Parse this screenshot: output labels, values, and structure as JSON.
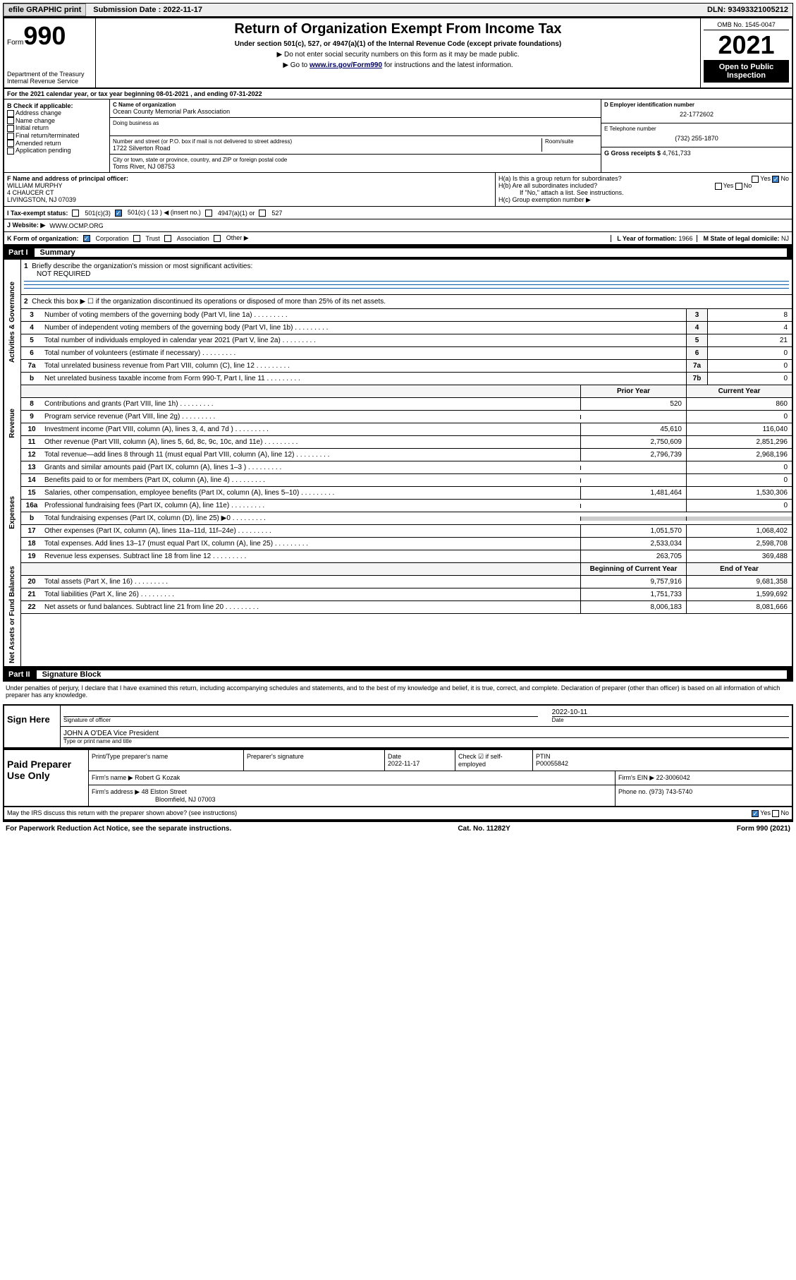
{
  "topbar": {
    "efile": "efile GRAPHIC print",
    "submission_label": "Submission Date : 2022-11-17",
    "dln": "DLN: 93493321005212"
  },
  "header": {
    "form_label": "Form",
    "form_number": "990",
    "title": "Return of Organization Exempt From Income Tax",
    "subtitle": "Under section 501(c), 527, or 4947(a)(1) of the Internal Revenue Code (except private foundations)",
    "note1": "▶ Do not enter social security numbers on this form as it may be made public.",
    "note2_prefix": "▶ Go to ",
    "note2_link": "www.irs.gov/Form990",
    "note2_suffix": " for instructions and the latest information.",
    "dept": "Department of the Treasury Internal Revenue Service",
    "omb": "OMB No. 1545-0047",
    "year": "2021",
    "open": "Open to Public Inspection"
  },
  "line_a": "For the 2021 calendar year, or tax year beginning 08-01-2021   , and ending 07-31-2022",
  "section_b": {
    "label": "B Check if applicable:",
    "opts": [
      "Address change",
      "Name change",
      "Initial return",
      "Final return/terminated",
      "Amended return",
      "Application pending"
    ]
  },
  "section_c": {
    "name_label": "C Name of organization",
    "name": "Ocean County Memorial Park Association",
    "dba_label": "Doing business as",
    "addr_label": "Number and street (or P.O. box if mail is not delivered to street address)",
    "room_label": "Room/suite",
    "addr": "1722 Silverton Road",
    "city_label": "City or town, state or province, country, and ZIP or foreign postal code",
    "city": "Toms River, NJ  08753"
  },
  "section_d": {
    "label": "D Employer identification number",
    "value": "22-1772602"
  },
  "section_e": {
    "label": "E Telephone number",
    "value": "(732) 255-1870"
  },
  "section_g": {
    "label": "G Gross receipts $",
    "value": "4,761,733"
  },
  "section_f": {
    "label": "F  Name and address of principal officer:",
    "name": "WILLIAM MURPHY",
    "addr1": "4 CHAUCER CT",
    "addr2": "LIVINGSTON, NJ  07039"
  },
  "section_h": {
    "ha": "H(a)  Is this a group return for subordinates?",
    "hb": "H(b)  Are all subordinates included?",
    "hb_note": "If \"No,\" attach a list. See instructions.",
    "hc": "H(c)  Group exemption number ▶",
    "yes": "Yes",
    "no": "No"
  },
  "section_i": {
    "label": "I    Tax-exempt status:",
    "c3": "501(c)(3)",
    "c": "501(c) ( 13 ) ◀ (insert no.)",
    "a1": "4947(a)(1) or",
    "527": "527"
  },
  "section_j": {
    "label": "J   Website: ▶",
    "value": "WWW.OCMP.ORG"
  },
  "section_k": {
    "label": "K Form of organization:",
    "corp": "Corporation",
    "trust": "Trust",
    "assoc": "Association",
    "other": "Other ▶"
  },
  "section_l": {
    "label": "L Year of formation:",
    "value": "1966"
  },
  "section_m": {
    "label": "M State of legal domicile:",
    "value": "NJ"
  },
  "part1": {
    "label": "Part I",
    "title": "Summary"
  },
  "q1": {
    "num": "1",
    "label": "Briefly describe the organization's mission or most significant activities:",
    "value": "NOT REQUIRED"
  },
  "q2": {
    "num": "2",
    "label": "Check this box ▶ ☐  if the organization discontinued its operations or disposed of more than 25% of its net assets."
  },
  "lines_gov": [
    {
      "num": "3",
      "desc": "Number of voting members of the governing body (Part VI, line 1a)",
      "col": "3",
      "val": "8"
    },
    {
      "num": "4",
      "desc": "Number of independent voting members of the governing body (Part VI, line 1b)",
      "col": "4",
      "val": "4"
    },
    {
      "num": "5",
      "desc": "Total number of individuals employed in calendar year 2021 (Part V, line 2a)",
      "col": "5",
      "val": "21"
    },
    {
      "num": "6",
      "desc": "Total number of volunteers (estimate if necessary)",
      "col": "6",
      "val": "0"
    },
    {
      "num": "7a",
      "desc": "Total unrelated business revenue from Part VIII, column (C), line 12",
      "col": "7a",
      "val": "0"
    },
    {
      "num": "b",
      "desc": "Net unrelated business taxable income from Form 990-T, Part I, line 11",
      "col": "7b",
      "val": "0"
    }
  ],
  "rev_header": {
    "prior": "Prior Year",
    "current": "Current Year"
  },
  "lines_rev": [
    {
      "num": "8",
      "desc": "Contributions and grants (Part VIII, line 1h)",
      "prior": "520",
      "curr": "860"
    },
    {
      "num": "9",
      "desc": "Program service revenue (Part VIII, line 2g)",
      "prior": "",
      "curr": "0"
    },
    {
      "num": "10",
      "desc": "Investment income (Part VIII, column (A), lines 3, 4, and 7d )",
      "prior": "45,610",
      "curr": "116,040"
    },
    {
      "num": "11",
      "desc": "Other revenue (Part VIII, column (A), lines 5, 6d, 8c, 9c, 10c, and 11e)",
      "prior": "2,750,609",
      "curr": "2,851,296"
    },
    {
      "num": "12",
      "desc": "Total revenue—add lines 8 through 11 (must equal Part VIII, column (A), line 12)",
      "prior": "2,796,739",
      "curr": "2,968,196"
    }
  ],
  "lines_exp": [
    {
      "num": "13",
      "desc": "Grants and similar amounts paid (Part IX, column (A), lines 1–3 )",
      "prior": "",
      "curr": "0"
    },
    {
      "num": "14",
      "desc": "Benefits paid to or for members (Part IX, column (A), line 4)",
      "prior": "",
      "curr": "0"
    },
    {
      "num": "15",
      "desc": "Salaries, other compensation, employee benefits (Part IX, column (A), lines 5–10)",
      "prior": "1,481,464",
      "curr": "1,530,306"
    },
    {
      "num": "16a",
      "desc": "Professional fundraising fees (Part IX, column (A), line 11e)",
      "prior": "",
      "curr": "0"
    },
    {
      "num": "b",
      "desc": "Total fundraising expenses (Part IX, column (D), line 25) ▶0",
      "prior": "shade",
      "curr": "shade"
    },
    {
      "num": "17",
      "desc": "Other expenses (Part IX, column (A), lines 11a–11d, 11f–24e)",
      "prior": "1,051,570",
      "curr": "1,068,402"
    },
    {
      "num": "18",
      "desc": "Total expenses. Add lines 13–17 (must equal Part IX, column (A), line 25)",
      "prior": "2,533,034",
      "curr": "2,598,708"
    },
    {
      "num": "19",
      "desc": "Revenue less expenses. Subtract line 18 from line 12",
      "prior": "263,705",
      "curr": "369,488"
    }
  ],
  "net_header": {
    "begin": "Beginning of Current Year",
    "end": "End of Year"
  },
  "lines_net": [
    {
      "num": "20",
      "desc": "Total assets (Part X, line 16)",
      "prior": "9,757,916",
      "curr": "9,681,358"
    },
    {
      "num": "21",
      "desc": "Total liabilities (Part X, line 26)",
      "prior": "1,751,733",
      "curr": "1,599,692"
    },
    {
      "num": "22",
      "desc": "Net assets or fund balances. Subtract line 21 from line 20",
      "prior": "8,006,183",
      "curr": "8,081,666"
    }
  ],
  "part2": {
    "label": "Part II",
    "title": "Signature Block"
  },
  "penalties": "Under penalties of perjury, I declare that I have examined this return, including accompanying schedules and statements, and to the best of my knowledge and belief, it is true, correct, and complete. Declaration of preparer (other than officer) is based on all information of which preparer has any knowledge.",
  "sign": {
    "here": "Sign Here",
    "sig_label": "Signature of officer",
    "date_label": "Date",
    "date": "2022-10-11",
    "name": "JOHN A O'DEA  Vice President",
    "name_label": "Type or print name and title"
  },
  "preparer": {
    "label": "Paid Preparer Use Only",
    "h_name": "Print/Type preparer's name",
    "h_sig": "Preparer's signature",
    "h_date": "Date",
    "h_check": "Check ☑ if self-employed",
    "h_ptin": "PTIN",
    "date": "2022-11-17",
    "ptin": "P00055842",
    "firm_label": "Firm's name    ▶",
    "firm": "Robert G Kozak",
    "ein_label": "Firm's EIN ▶",
    "ein": "22-3006042",
    "addr_label": "Firm's address ▶",
    "addr1": "48 Elston Street",
    "addr2": "Bloomfield, NJ  07003",
    "phone_label": "Phone no.",
    "phone": "(973) 743-5740"
  },
  "discuss": {
    "label": "May the IRS discuss this return with the preparer shown above? (see instructions)",
    "yes": "Yes",
    "no": "No"
  },
  "footer": {
    "left": "For Paperwork Reduction Act Notice, see the separate instructions.",
    "mid": "Cat. No. 11282Y",
    "right": "Form 990 (2021)"
  },
  "vtabs": {
    "gov": "Activities & Governance",
    "rev": "Revenue",
    "exp": "Expenses",
    "net": "Net Assets or Fund Balances"
  }
}
